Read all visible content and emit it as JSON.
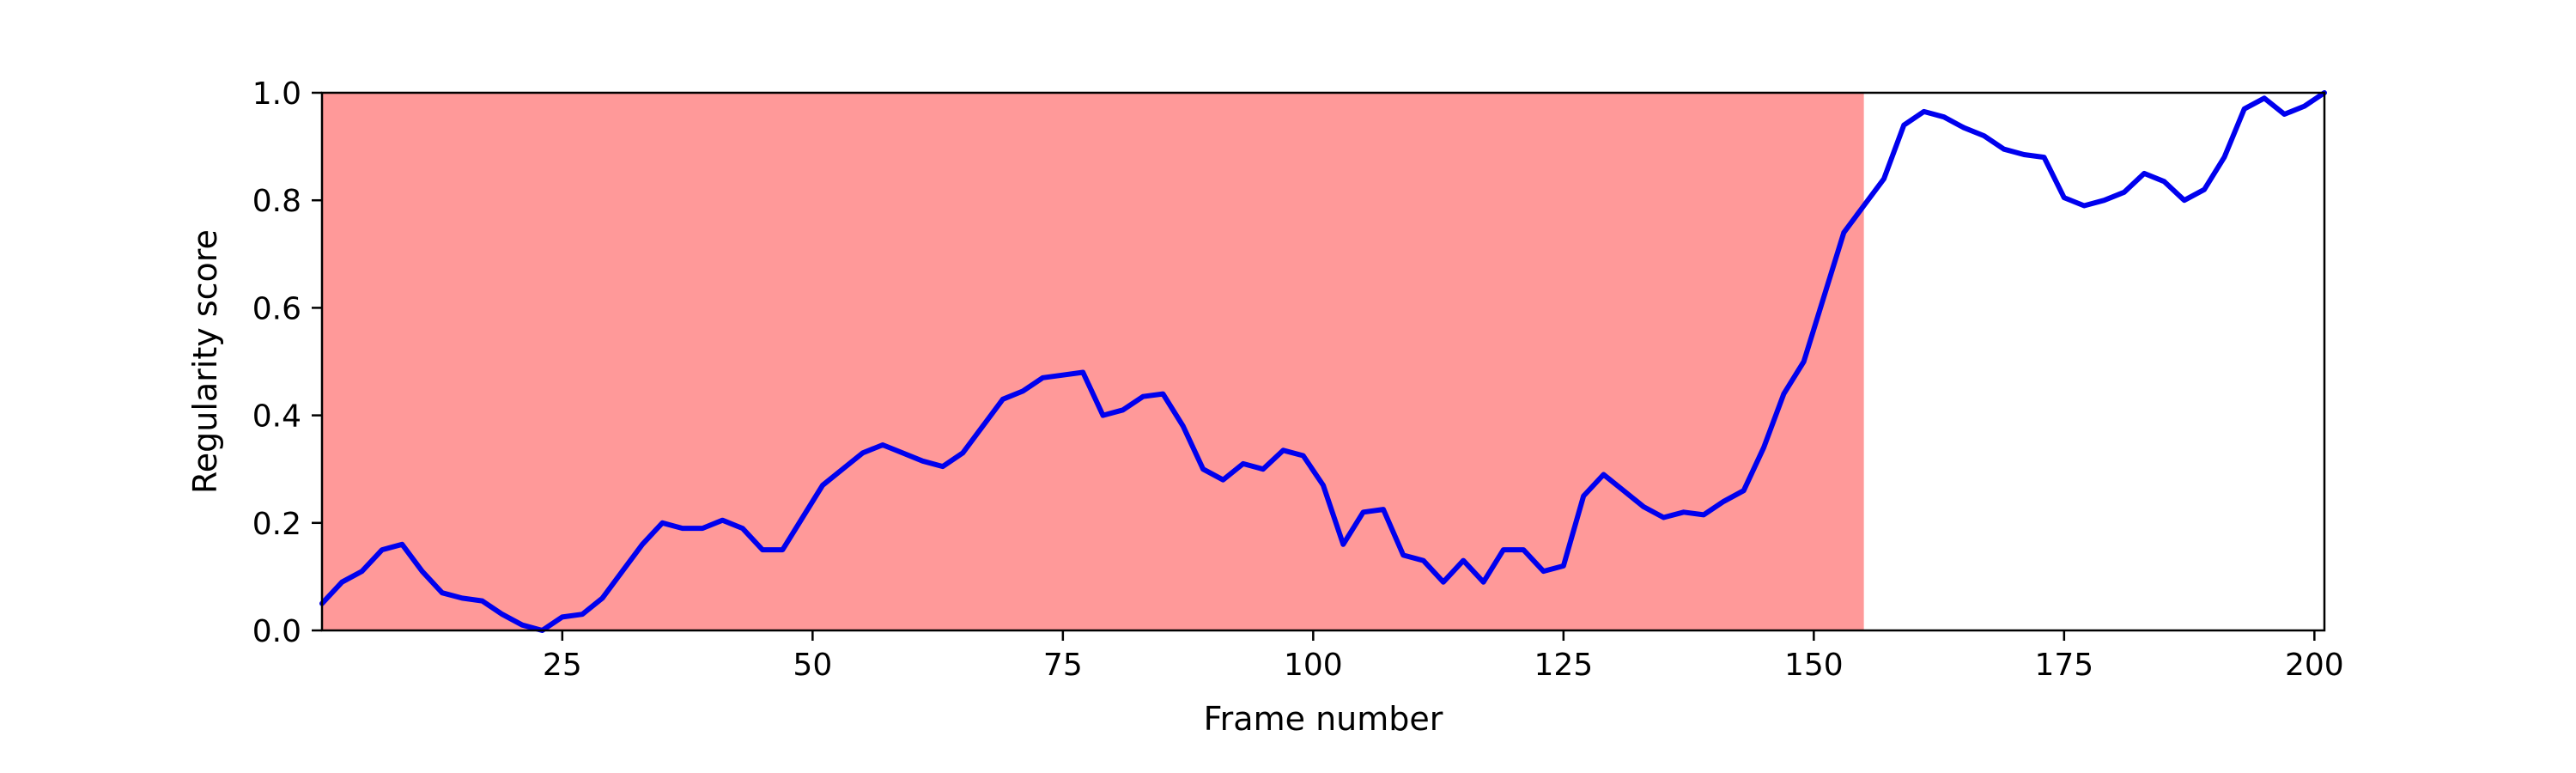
{
  "chart_data": {
    "type": "line",
    "title": "",
    "xlabel": "Frame number",
    "ylabel": "Regularity score",
    "xlim": [
      1,
      201
    ],
    "ylim": [
      0.0,
      1.0
    ],
    "x_ticks": [
      25,
      50,
      75,
      100,
      125,
      150,
      175,
      200
    ],
    "y_ticks": [
      0.0,
      0.2,
      0.4,
      0.6,
      0.8,
      1.0
    ],
    "x_tick_labels": [
      "25",
      "50",
      "75",
      "100",
      "125",
      "150",
      "175",
      "200"
    ],
    "y_tick_labels": [
      "0.0",
      "0.2",
      "0.4",
      "0.6",
      "0.8",
      "1.0"
    ],
    "grid": false,
    "legend": "none",
    "shaded_region": {
      "x_start": 1,
      "x_end": 155,
      "color": "#ff9999"
    },
    "line_color": "#0000ee",
    "series": [
      {
        "x": [
          1,
          3,
          5,
          7,
          9,
          11,
          13,
          15,
          17,
          19,
          21,
          23,
          25,
          27,
          29,
          31,
          33,
          35,
          37,
          39,
          41,
          43,
          45,
          47,
          49,
          51,
          53,
          55,
          57,
          59,
          61,
          63,
          65,
          67,
          69,
          71,
          73,
          75,
          77,
          79,
          81,
          83,
          85,
          87,
          89,
          91,
          93,
          95,
          97,
          99,
          101,
          103,
          105,
          107,
          109,
          111,
          113,
          115,
          117,
          119,
          121,
          123,
          125,
          127,
          129,
          131,
          133,
          135,
          137,
          139,
          141,
          143,
          145,
          147,
          149,
          151,
          153,
          155,
          157,
          159,
          161,
          163,
          165,
          167,
          169,
          171,
          173,
          175,
          177,
          179,
          181,
          183,
          185,
          187,
          189,
          191,
          193,
          195,
          197,
          199,
          201
        ],
        "values": [
          0.05,
          0.09,
          0.11,
          0.15,
          0.16,
          0.11,
          0.07,
          0.06,
          0.055,
          0.03,
          0.01,
          0.0,
          0.025,
          0.03,
          0.06,
          0.11,
          0.16,
          0.2,
          0.19,
          0.19,
          0.205,
          0.19,
          0.15,
          0.15,
          0.21,
          0.27,
          0.3,
          0.33,
          0.345,
          0.33,
          0.315,
          0.305,
          0.33,
          0.38,
          0.43,
          0.445,
          0.47,
          0.475,
          0.48,
          0.4,
          0.41,
          0.435,
          0.44,
          0.38,
          0.3,
          0.28,
          0.31,
          0.3,
          0.335,
          0.325,
          0.27,
          0.16,
          0.22,
          0.225,
          0.14,
          0.13,
          0.09,
          0.13,
          0.09,
          0.15,
          0.15,
          0.11,
          0.12,
          0.25,
          0.29,
          0.26,
          0.23,
          0.21,
          0.22,
          0.215,
          0.24,
          0.26,
          0.34,
          0.44,
          0.5,
          0.62,
          0.74,
          0.79,
          0.84,
          0.94,
          0.965,
          0.955,
          0.935,
          0.92,
          0.895,
          0.885,
          0.88,
          0.805,
          0.79,
          0.8,
          0.815,
          0.85,
          0.835,
          0.8,
          0.82,
          0.88,
          0.97,
          0.99,
          0.96,
          0.975,
          1.0
        ]
      }
    ]
  }
}
